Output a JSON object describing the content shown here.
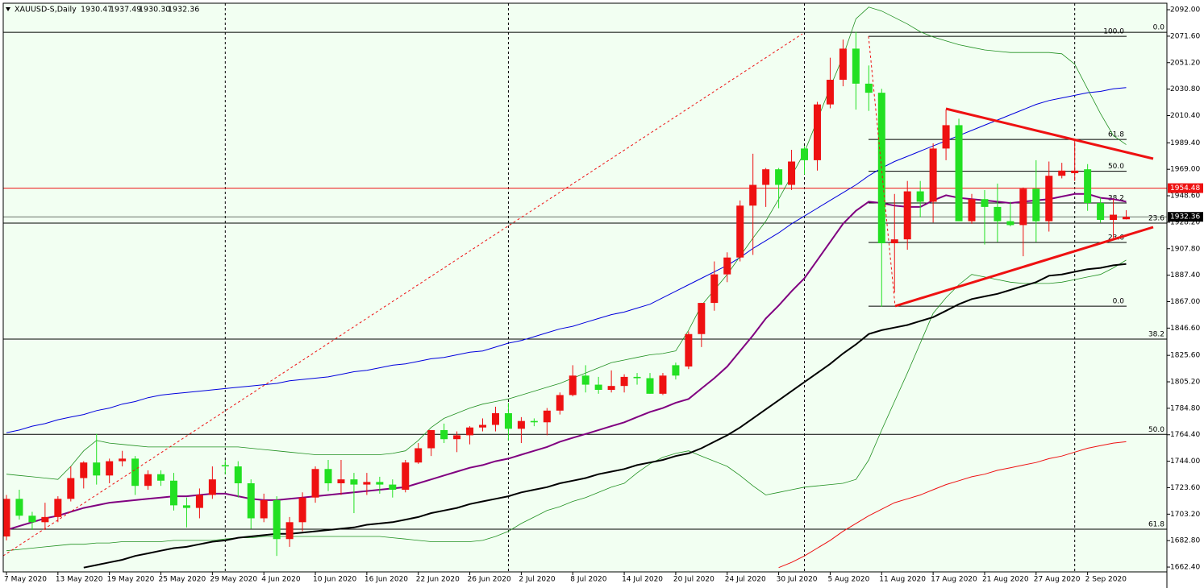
{
  "chart_data": {
    "type": "candlestick",
    "title": "XAUUSD-S,Daily",
    "header_values": [
      "1930.47",
      "1937.49",
      "1930.30",
      "1932.36"
    ],
    "categories": [
      "7 May 2020",
      null,
      null,
      null,
      "13 May 2020",
      null,
      null,
      null,
      "19 May 2020",
      null,
      null,
      null,
      "25 May 2020",
      null,
      null,
      null,
      "29 May 2020",
      null,
      null,
      null,
      "4 Jun 2020",
      null,
      null,
      null,
      "10 Jun 2020",
      null,
      null,
      null,
      "16 Jun 2020",
      null,
      null,
      null,
      "22 Jun 2020",
      null,
      null,
      null,
      "26 Jun 2020",
      null,
      null,
      null,
      "2 Jul 2020",
      null,
      null,
      null,
      "8 Jul 2020",
      null,
      null,
      null,
      "14 Jul 2020",
      null,
      null,
      null,
      "20 Jul 2020",
      null,
      null,
      null,
      "24 Jul 2020",
      null,
      null,
      null,
      "30 Jul 2020",
      null,
      null,
      null,
      "5 Aug 2020",
      null,
      null,
      null,
      "11 Aug 2020",
      null,
      null,
      null,
      "17 Aug 2020",
      null,
      null,
      null,
      "21 Aug 2020",
      null,
      null,
      null,
      "27 Aug 2020",
      null,
      null,
      null,
      "2 Sep 2020",
      null,
      null,
      null
    ],
    "open": [
      1686,
      1715,
      1702,
      1697,
      1701,
      1715,
      1731,
      1743,
      1733,
      1744,
      1746,
      1725,
      1734,
      1729,
      1710,
      1708,
      1718,
      1741,
      1740,
      1727,
      1700,
      1714,
      1684,
      1697,
      1716,
      1738,
      1727,
      1730,
      1726,
      1728,
      1726,
      1722,
      1743,
      1754,
      1768,
      1761,
      1764,
      1770,
      1772,
      1781,
      1769,
      1775,
      1774,
      1783,
      1795,
      1810,
      1803,
      1799,
      1802,
      1809,
      1808,
      1796,
      1818,
      1817,
      1842,
      1866,
      1888,
      1901,
      1941,
      1957,
      1969,
      1957,
      1985,
      1976,
      2019,
      2038,
      2062,
      2035,
      2028,
      1912,
      1915,
      1952,
      1944,
      1985,
      2003,
      1929,
      1946,
      1940,
      1929,
      1926,
      1954,
      1929,
      1964,
      1966,
      1969,
      1943,
      1930,
      1930.47
    ],
    "high": [
      1718,
      1722,
      1705,
      1712,
      1717,
      1740,
      1744,
      1765,
      1746,
      1752,
      1748,
      1737,
      1737,
      1735,
      1716,
      1723,
      1740,
      1745,
      1744,
      1730,
      1719,
      1717,
      1701,
      1720,
      1740,
      1745,
      1745,
      1735,
      1735,
      1732,
      1730,
      1745,
      1758,
      1768,
      1773,
      1767,
      1771,
      1777,
      1786,
      1789,
      1778,
      1777,
      1785,
      1797,
      1818,
      1818,
      1809,
      1814,
      1811,
      1812,
      1812,
      1812,
      1820,
      1844,
      1866,
      1898,
      1905,
      1945,
      1981,
      1970,
      1970,
      1984,
      1987,
      2021,
      2055,
      2069,
      2075,
      2049,
      2031,
      1950,
      1960,
      1960,
      1989,
      2015,
      2008,
      1950,
      1953,
      1958,
      1944,
      1955,
      1976,
      1975,
      1974,
      1992,
      1973,
      1947,
      1946,
      1937.49
    ],
    "low": [
      1683,
      1699,
      1691,
      1691,
      1697,
      1713,
      1723,
      1726,
      1727,
      1740,
      1718,
      1722,
      1725,
      1706,
      1693,
      1700,
      1715,
      1734,
      1716,
      1692,
      1697,
      1671,
      1678,
      1690,
      1712,
      1721,
      1718,
      1704,
      1718,
      1719,
      1716,
      1720,
      1742,
      1748,
      1758,
      1751,
      1757,
      1767,
      1767,
      1760,
      1758,
      1771,
      1764,
      1780,
      1794,
      1797,
      1796,
      1797,
      1797,
      1803,
      1796,
      1795,
      1807,
      1815,
      1832,
      1860,
      1882,
      1898,
      1903,
      1940,
      1939,
      1953,
      1965,
      1968,
      2016,
      2033,
      2015,
      2014,
      1863,
      1874,
      1907,
      1932,
      1928,
      1976,
      1929,
      1927,
      1911,
      1913,
      1925,
      1902,
      1913,
      1921,
      1962,
      1960,
      1937,
      1928,
      1916,
      1930.3
    ],
    "close": [
      1715,
      1702,
      1697,
      1701,
      1715,
      1731,
      1743,
      1733,
      1744,
      1746,
      1725,
      1734,
      1729,
      1710,
      1708,
      1718,
      1730,
      1740,
      1727,
      1700,
      1714,
      1684,
      1697,
      1716,
      1738,
      1727,
      1730,
      1726,
      1728,
      1726,
      1722,
      1743,
      1754,
      1768,
      1761,
      1764,
      1770,
      1772,
      1781,
      1769,
      1775,
      1774,
      1783,
      1795,
      1810,
      1803,
      1799,
      1802,
      1809,
      1808,
      1796,
      1810,
      1810,
      1842,
      1866,
      1888,
      1901,
      1941,
      1957,
      1969,
      1957,
      1975,
      1976,
      2019,
      2038,
      2062,
      2035,
      2028,
      1912,
      1915,
      1952,
      1944,
      1985,
      2003,
      1929,
      1946,
      1940,
      1929,
      1926,
      1954,
      1929,
      1964,
      1968,
      1968,
      1943,
      1930,
      1934,
      1932.36
    ],
    "up_color": "#ee1111",
    "down_color": "#22e022",
    "indicators": [
      {
        "color": "#0000dd",
        "values": [
          1766,
          1768,
          1771,
          1773,
          1776,
          1778,
          1780,
          1783,
          1785,
          1788,
          1790,
          1793,
          1795,
          1796,
          1797,
          1798,
          1799,
          1800,
          1801,
          1802,
          1803,
          1804,
          1806,
          1807,
          1808,
          1809,
          1811,
          1813,
          1814,
          1816,
          1818,
          1819,
          1821,
          1823,
          1824,
          1826,
          1828,
          1829,
          1832,
          1835,
          1837,
          1840,
          1843,
          1846,
          1848,
          1851,
          1854,
          1857,
          1859,
          1862,
          1865,
          1870,
          1875,
          1880,
          1885,
          1890,
          1895,
          1901,
          1908,
          1914,
          1920,
          1927,
          1933,
          1939,
          1945,
          1951,
          1957,
          1964,
          1970,
          1975,
          1979,
          1983,
          1987,
          1991,
          1995,
          1999,
          2003,
          2007,
          2011,
          2015,
          2019,
          2022,
          2024,
          2026,
          2028,
          2029,
          2031,
          2032
        ]
      },
      {
        "color": "#209020",
        "values": [
          1734,
          1733,
          1732,
          1731,
          1730,
          1740,
          1752,
          1760,
          1758,
          1757,
          1756,
          1755,
          1755,
          1755,
          1755,
          1755,
          1755,
          1755,
          1755,
          1754,
          1753,
          1752,
          1751,
          1750,
          1749,
          1749,
          1749,
          1749,
          1749,
          1749,
          1750,
          1752,
          1760,
          1770,
          1777,
          1781,
          1785,
          1788,
          1790,
          1792,
          1795,
          1798,
          1801,
          1804,
          1808,
          1812,
          1816,
          1820,
          1822,
          1824,
          1826,
          1827,
          1829,
          1845,
          1864,
          1876,
          1888,
          1902,
          1916,
          1929,
          1946,
          1964,
          1982,
          2007,
          2032,
          2056,
          2085,
          2094,
          2091,
          2086,
          2081,
          2075,
          2071,
          2068,
          2065,
          2063,
          2061,
          2060,
          2059,
          2059,
          2059,
          2059,
          2058,
          2050,
          2031,
          2012,
          1995,
          1988
        ]
      },
      {
        "color": "#209020",
        "values": [
          1675,
          1676,
          1677,
          1678,
          1679,
          1680,
          1680,
          1681,
          1681,
          1682,
          1682,
          1682,
          1682,
          1683,
          1683,
          1683,
          1683,
          1684,
          1685,
          1685,
          1686,
          1686,
          1686,
          1686,
          1686,
          1686,
          1686,
          1686,
          1686,
          1686,
          1685,
          1684,
          1683,
          1682,
          1682,
          1682,
          1682,
          1683,
          1686,
          1690,
          1696,
          1701,
          1706,
          1709,
          1713,
          1716,
          1720,
          1724,
          1727,
          1735,
          1742,
          1747,
          1750,
          1752,
          1748,
          1744,
          1740,
          1733,
          1725,
          1718,
          1720,
          1722,
          1724,
          1725,
          1726,
          1727,
          1730,
          1745,
          1768,
          1790,
          1812,
          1835,
          1858,
          1870,
          1880,
          1888,
          1886,
          1884,
          1882,
          1881,
          1881,
          1881,
          1882,
          1884,
          1886,
          1888,
          1893,
          1899
        ]
      },
      {
        "color": "#ee1111",
        "values": [
          null,
          null,
          null,
          null,
          null,
          null,
          null,
          null,
          null,
          null,
          null,
          null,
          null,
          null,
          null,
          null,
          null,
          null,
          null,
          null,
          null,
          null,
          null,
          null,
          null,
          null,
          null,
          null,
          null,
          null,
          null,
          null,
          null,
          null,
          null,
          null,
          null,
          null,
          null,
          null,
          null,
          null,
          null,
          null,
          null,
          null,
          null,
          null,
          null,
          null,
          null,
          null,
          null,
          null,
          null,
          null,
          null,
          null,
          null,
          null,
          1662,
          1666,
          1671,
          1677,
          1683,
          1690,
          1696,
          1702,
          1707,
          1712,
          1715,
          1718,
          1722,
          1726,
          1729,
          1732,
          1734,
          1737,
          1739,
          1741,
          1743,
          1746,
          1748,
          1751,
          1754,
          1756,
          1758,
          1759
        ]
      },
      {
        "color": "#000000",
        "values": [
          null,
          null,
          null,
          null,
          null,
          null,
          1662,
          1664,
          1666,
          1668,
          1671,
          1673,
          1675,
          1677,
          1678,
          1680,
          1682,
          1683,
          1685,
          1686,
          1687,
          1688,
          1688,
          1689,
          1690,
          1691,
          1692,
          1693,
          1695,
          1696,
          1697,
          1699,
          1701,
          1704,
          1706,
          1708,
          1711,
          1713,
          1715,
          1717,
          1720,
          1722,
          1724,
          1727,
          1729,
          1731,
          1734,
          1736,
          1738,
          1741,
          1743,
          1745,
          1748,
          1750,
          1754,
          1759,
          1764,
          1770,
          1777,
          1784,
          1791,
          1798,
          1805,
          1812,
          1819,
          1827,
          1834,
          1842,
          1845,
          1847,
          1849,
          1852,
          1855,
          1860,
          1865,
          1869,
          1871,
          1873,
          1876,
          1879,
          1882,
          1887,
          1888,
          1890,
          1892,
          1893,
          1895,
          1896
        ]
      },
      {
        "color": "#800080",
        "values": [
          1691,
          1694,
          1697,
          1700,
          1702,
          1705,
          1708,
          1710,
          1712,
          1713,
          1714,
          1715,
          1716,
          1717,
          1717,
          1718,
          1719,
          1719,
          1717,
          1715,
          1714,
          1714,
          1715,
          1716,
          1717,
          1718,
          1719,
          1720,
          1721,
          1722,
          1723,
          1724,
          1727,
          1730,
          1733,
          1736,
          1739,
          1741,
          1744,
          1746,
          1749,
          1752,
          1755,
          1759,
          1762,
          1765,
          1768,
          1771,
          1774,
          1778,
          1782,
          1785,
          1789,
          1792,
          1800,
          1808,
          1817,
          1829,
          1841,
          1854,
          1864,
          1875,
          1885,
          1899,
          1913,
          1927,
          1937,
          1944,
          1943,
          1941,
          1940,
          1940,
          1945,
          1949,
          1947,
          1946,
          1945,
          1944,
          1943,
          1944,
          1945,
          1946,
          1948,
          1950,
          1950,
          1947,
          1946,
          1944
        ]
      }
    ],
    "fibonacci": [
      {
        "color": "#000000",
        "levels": [
          {
            "label": "0.0",
            "price": 2074.6
          },
          {
            "label": "23.6",
            "price": 1927.5
          },
          {
            "label": "38.2",
            "price": 1838.1
          },
          {
            "label": "50.0",
            "price": 1764.7
          },
          {
            "label": "61.8",
            "price": 1691.6
          }
        ]
      },
      {
        "color": "#000000",
        "levels": [
          {
            "label": "100.0",
            "price": 2071.5
          },
          {
            "label": "61.8",
            "price": 1992.0
          },
          {
            "label": "50.0",
            "price": 1967.5
          },
          {
            "label": "38.2",
            "price": 1943.0
          },
          {
            "label": "23.6",
            "price": 1912.6
          },
          {
            "label": "0.0",
            "price": 1863.5
          }
        ]
      }
    ],
    "price_lines": [
      {
        "value": 1954.48,
        "color": "#ee1111"
      }
    ],
    "current_price_color": "#000000",
    "background": "#f2fff2",
    "ylim": [
      1658.7,
      2097.0
    ],
    "yticks": [
      {
        "value": 2092,
        "label": "2092.00"
      },
      {
        "value": 2071.6,
        "label": "2071.60"
      },
      {
        "value": 2051.2,
        "label": "2051.20"
      },
      {
        "value": 2030.8,
        "label": "2030.80"
      },
      {
        "value": 2010.4,
        "label": "2010.40"
      },
      {
        "value": 1989.4,
        "label": "1989.40"
      },
      {
        "value": 1969,
        "label": "1969.00"
      },
      {
        "value": 1948.6,
        "label": "1948.60"
      },
      {
        "value": 1928.2,
        "label": "1928.20"
      },
      {
        "value": 1907.8,
        "label": "1907.80"
      },
      {
        "value": 1887.4,
        "label": "1887.40"
      },
      {
        "value": 1867,
        "label": "1867.00"
      },
      {
        "value": 1846.6,
        "label": "1846.60"
      },
      {
        "value": 1825.6,
        "label": "1825.60"
      },
      {
        "value": 1805.2,
        "label": "1805.20"
      },
      {
        "value": 1784.8,
        "label": "1784.80"
      },
      {
        "value": 1764.4,
        "label": "1764.40"
      },
      {
        "value": 1744,
        "label": "1744.00"
      },
      {
        "value": 1723.6,
        "label": "1723.60"
      },
      {
        "value": 1703.2,
        "label": "1703.20"
      },
      {
        "value": 1682.8,
        "label": "1682.80"
      },
      {
        "value": 1662.4,
        "label": "1662.40"
      }
    ],
    "grid": false
  }
}
